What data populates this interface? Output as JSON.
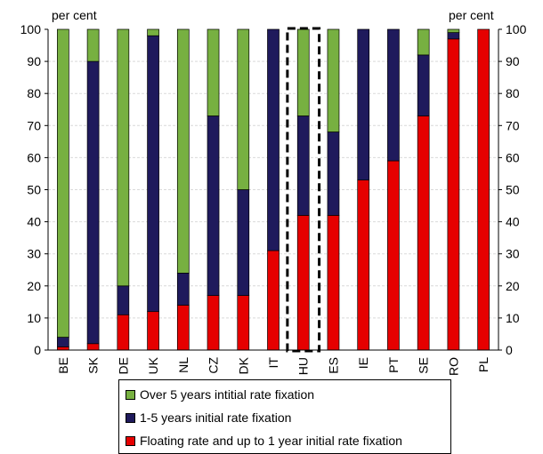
{
  "chart_data": {
    "type": "bar",
    "stacked": true,
    "left_unit": "per cent",
    "right_unit": "per cent",
    "ylim": [
      0,
      100
    ],
    "yticks": [
      0,
      10,
      20,
      30,
      40,
      50,
      60,
      70,
      80,
      90,
      100
    ],
    "categories": [
      "BE",
      "SK",
      "DE",
      "UK",
      "NL",
      "CZ",
      "DK",
      "IT",
      "HU",
      "ES",
      "IE",
      "PT",
      "SE",
      "RO",
      "PL"
    ],
    "highlighted_category": "HU",
    "grid": true,
    "legend_position": "bottom",
    "series": [
      {
        "name": "Floating rate and up to 1 year initial rate fixation",
        "color": "#e60000",
        "values": [
          1,
          2,
          11,
          12,
          14,
          17,
          17,
          31,
          42,
          42,
          53,
          59,
          73,
          97,
          100
        ]
      },
      {
        "name": "1-5 years initial rate fixation",
        "color": "#1f1a5c",
        "values": [
          3,
          88,
          9,
          86,
          10,
          56,
          33,
          69,
          31,
          26,
          47,
          41,
          19,
          2,
          0
        ]
      },
      {
        "name": "Over 5 years intitial rate fixation",
        "color": "#77b041",
        "values": [
          96,
          10,
          80,
          2,
          76,
          27,
          50,
          0,
          27,
          32,
          0,
          0,
          8,
          1,
          0
        ]
      }
    ]
  },
  "legend": {
    "items": [
      {
        "label": "Over 5 years intitial rate fixation",
        "color": "#77b041"
      },
      {
        "label": "1-5 years initial rate fixation",
        "color": "#1f1a5c"
      },
      {
        "label": "Floating rate and up to 1 year initial rate fixation",
        "color": "#e60000"
      }
    ]
  }
}
